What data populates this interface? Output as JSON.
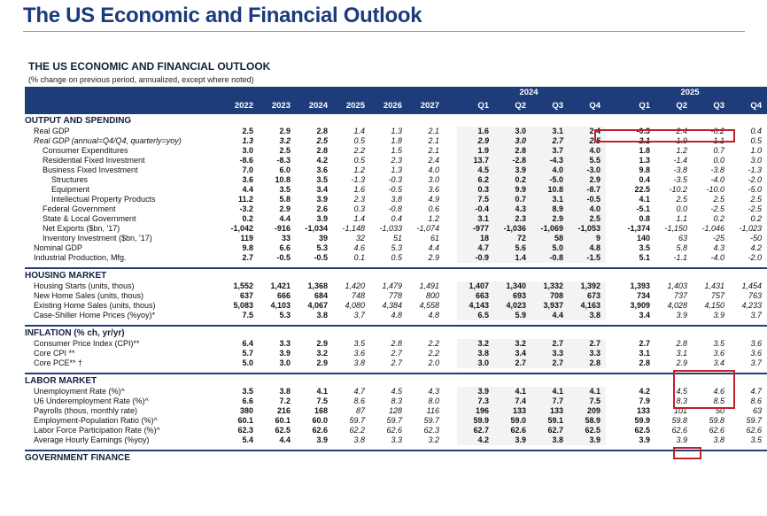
{
  "page": {
    "title": "The US Economic and Financial Outlook",
    "doc_title": "THE US ECONOMIC AND FINANCIAL OUTLOOK",
    "subtitle": "(% change on previous period, annualized, except where noted)"
  },
  "columns": {
    "group_2024": "2024",
    "group_2025": "2025",
    "annual": [
      "2022",
      "2023",
      "2024",
      "2025",
      "2026",
      "2027"
    ],
    "q2024": [
      "Q1",
      "Q2",
      "Q3",
      "Q4"
    ],
    "q2025": [
      "Q1",
      "Q2",
      "Q3",
      "Q4"
    ]
  },
  "sections": [
    {
      "title": "OUTPUT AND SPENDING",
      "rows": [
        {
          "label": "Real GDP",
          "indent": 1,
          "italic": false,
          "annual": [
            "2.5",
            "2.9",
            "2.8",
            "1.4",
            "1.3",
            "2.1"
          ],
          "q2024": [
            "1.6",
            "3.0",
            "3.1",
            "2.4"
          ],
          "q2025": [
            "-0.3",
            "2.4",
            "-0.2",
            "0.4"
          ]
        },
        {
          "label": "Real GDP (annual=Q4/Q4, quarterly=yoy)",
          "indent": 1,
          "italic": true,
          "annual": [
            "1.3",
            "3.2",
            "2.5",
            "0.5",
            "1.8",
            "2.1"
          ],
          "q2024": [
            "2.9",
            "3.0",
            "2.7",
            "2.5"
          ],
          "q2025": [
            "2.1",
            "1.9",
            "1.1",
            "0.5"
          ]
        },
        {
          "label": "Consumer Expenditures",
          "indent": 2,
          "italic": false,
          "annual": [
            "3.0",
            "2.5",
            "2.8",
            "2.2",
            "1.5",
            "2.1"
          ],
          "q2024": [
            "1.9",
            "2.8",
            "3.7",
            "4.0"
          ],
          "q2025": [
            "1.8",
            "1.2",
            "0.7",
            "1.0"
          ]
        },
        {
          "label": "Residential Fixed Investment",
          "indent": 2,
          "italic": false,
          "annual": [
            "-8.6",
            "-8.3",
            "4.2",
            "0.5",
            "2.3",
            "2.4"
          ],
          "q2024": [
            "13.7",
            "-2.8",
            "-4.3",
            "5.5"
          ],
          "q2025": [
            "1.3",
            "-1.4",
            "0.0",
            "3.0"
          ]
        },
        {
          "label": "Business Fixed Investment",
          "indent": 2,
          "italic": false,
          "annual": [
            "7.0",
            "6.0",
            "3.6",
            "1.2",
            "1.3",
            "4.0"
          ],
          "q2024": [
            "4.5",
            "3.9",
            "4.0",
            "-3.0"
          ],
          "q2025": [
            "9.8",
            "-3.8",
            "-3.8",
            "-1.3"
          ]
        },
        {
          "label": "Structures",
          "indent": 3,
          "italic": false,
          "annual": [
            "3.6",
            "10.8",
            "3.5",
            "-1.3",
            "-0.3",
            "3.0"
          ],
          "q2024": [
            "6.2",
            "0.2",
            "-5.0",
            "2.9"
          ],
          "q2025": [
            "0.4",
            "-3.5",
            "-4.0",
            "-2.0"
          ]
        },
        {
          "label": "Equipment",
          "indent": 3,
          "italic": false,
          "annual": [
            "4.4",
            "3.5",
            "3.4",
            "1.6",
            "-0.5",
            "3.6"
          ],
          "q2024": [
            "0.3",
            "9.9",
            "10.8",
            "-8.7"
          ],
          "q2025": [
            "22.5",
            "-10.2",
            "-10.0",
            "-5.0"
          ]
        },
        {
          "label": "Intellectual Property Products",
          "indent": 3,
          "italic": false,
          "annual": [
            "11.2",
            "5.8",
            "3.9",
            "2.3",
            "3.8",
            "4.9"
          ],
          "q2024": [
            "7.5",
            "0.7",
            "3.1",
            "-0.5"
          ],
          "q2025": [
            "4.1",
            "2.5",
            "2.5",
            "2.5"
          ]
        },
        {
          "label": "Federal Government",
          "indent": 2,
          "italic": false,
          "annual": [
            "-3.2",
            "2.9",
            "2.6",
            "0.3",
            "-0.8",
            "0.6"
          ],
          "q2024": [
            "-0.4",
            "4.3",
            "8.9",
            "4.0"
          ],
          "q2025": [
            "-5.1",
            "0.0",
            "-2.5",
            "-2.5"
          ]
        },
        {
          "label": "State & Local Government",
          "indent": 2,
          "italic": false,
          "annual": [
            "0.2",
            "4.4",
            "3.9",
            "1.4",
            "0.4",
            "1.2"
          ],
          "q2024": [
            "3.1",
            "2.3",
            "2.9",
            "2.5"
          ],
          "q2025": [
            "0.8",
            "1.1",
            "0.2",
            "0.2"
          ]
        },
        {
          "label": "Net Exports ($bn, '17)",
          "indent": 2,
          "italic": false,
          "annual": [
            "-1,042",
            "-916",
            "-1,034",
            "-1,148",
            "-1,033",
            "-1,074"
          ],
          "q2024": [
            "-977",
            "-1,036",
            "-1,069",
            "-1,053"
          ],
          "q2025": [
            "-1,374",
            "-1,150",
            "-1,046",
            "-1,023"
          ]
        },
        {
          "label": "Inventory Investment ($bn, '17)",
          "indent": 2,
          "italic": false,
          "annual": [
            "119",
            "33",
            "39",
            "32",
            "51",
            "61"
          ],
          "q2024": [
            "18",
            "72",
            "58",
            "9"
          ],
          "q2025": [
            "140",
            "63",
            "-25",
            "-50"
          ]
        },
        {
          "label": "Nominal GDP",
          "indent": 1,
          "italic": false,
          "annual": [
            "9.8",
            "6.6",
            "5.3",
            "4.6",
            "5.3",
            "4.4"
          ],
          "q2024": [
            "4.7",
            "5.6",
            "5.0",
            "4.8"
          ],
          "q2025": [
            "3.5",
            "5.8",
            "4.3",
            "4.2"
          ]
        },
        {
          "label": "Industrial Production, Mfg.",
          "indent": 1,
          "italic": false,
          "annual": [
            "2.7",
            "-0.5",
            "-0.5",
            "0.1",
            "0.5",
            "2.9"
          ],
          "q2024": [
            "-0.9",
            "1.4",
            "-0.8",
            "-1.5"
          ],
          "q2025": [
            "5.1",
            "-1.1",
            "-4.0",
            "-2.0"
          ]
        }
      ]
    },
    {
      "title": "HOUSING MARKET",
      "rows": [
        {
          "label": "Housing Starts (units, thous)",
          "indent": 1,
          "italic": false,
          "annual": [
            "1,552",
            "1,421",
            "1,368",
            "1,420",
            "1,479",
            "1,491"
          ],
          "q2024": [
            "1,407",
            "1,340",
            "1,332",
            "1,392"
          ],
          "q2025": [
            "1,393",
            "1,403",
            "1,431",
            "1,454"
          ]
        },
        {
          "label": "New Home Sales (units, thous)",
          "indent": 1,
          "italic": false,
          "annual": [
            "637",
            "666",
            "684",
            "748",
            "778",
            "800"
          ],
          "q2024": [
            "663",
            "693",
            "708",
            "673"
          ],
          "q2025": [
            "734",
            "737",
            "757",
            "763"
          ]
        },
        {
          "label": "Existing Home Sales (units, thous)",
          "indent": 1,
          "italic": false,
          "annual": [
            "5,083",
            "4,103",
            "4,067",
            "4,080",
            "4,384",
            "4,558"
          ],
          "q2024": [
            "4,143",
            "4,023",
            "3,937",
            "4,163"
          ],
          "q2025": [
            "3,909",
            "4,028",
            "4,150",
            "4,233"
          ]
        },
        {
          "label": "Case-Shiller Home Prices (%yoy)*",
          "indent": 1,
          "italic": false,
          "annual": [
            "7.5",
            "5.3",
            "3.8",
            "3.7",
            "4.8",
            "4.8"
          ],
          "q2024": [
            "6.5",
            "5.9",
            "4.4",
            "3.8"
          ],
          "q2025": [
            "3.4",
            "3.9",
            "3.9",
            "3.7"
          ]
        }
      ]
    },
    {
      "title": "INFLATION (% ch, yr/yr)",
      "rows": [
        {
          "label": "Consumer Price Index (CPI)**",
          "indent": 1,
          "italic": false,
          "annual": [
            "6.4",
            "3.3",
            "2.9",
            "3.5",
            "2.8",
            "2.2"
          ],
          "q2024": [
            "3.2",
            "3.2",
            "2.7",
            "2.7"
          ],
          "q2025": [
            "2.7",
            "2.8",
            "3.5",
            "3.6"
          ]
        },
        {
          "label": "Core CPI **",
          "indent": 1,
          "italic": false,
          "annual": [
            "5.7",
            "3.9",
            "3.2",
            "3.6",
            "2.7",
            "2.2"
          ],
          "q2024": [
            "3.8",
            "3.4",
            "3.3",
            "3.3"
          ],
          "q2025": [
            "3.1",
            "3.1",
            "3.6",
            "3.6"
          ]
        },
        {
          "label": "Core PCE** †",
          "indent": 1,
          "italic": false,
          "annual": [
            "5.0",
            "3.0",
            "2.9",
            "3.8",
            "2.7",
            "2.0"
          ],
          "q2024": [
            "3.0",
            "2.7",
            "2.7",
            "2.8"
          ],
          "q2025": [
            "2.8",
            "2.9",
            "3.4",
            "3.7"
          ]
        }
      ]
    },
    {
      "title": "LABOR MARKET",
      "rows": [
        {
          "label": "Unemployment Rate (%)^",
          "indent": 1,
          "italic": false,
          "annual": [
            "3.5",
            "3.8",
            "4.1",
            "4.7",
            "4.5",
            "4.3"
          ],
          "q2024": [
            "3.9",
            "4.1",
            "4.1",
            "4.1"
          ],
          "q2025": [
            "4.2",
            "4.5",
            "4.6",
            "4.7"
          ]
        },
        {
          "label": "U6 Underemployment Rate (%)^",
          "indent": 1,
          "italic": false,
          "annual": [
            "6.6",
            "7.2",
            "7.5",
            "8.6",
            "8.3",
            "8.0"
          ],
          "q2024": [
            "7.3",
            "7.4",
            "7.7",
            "7.5"
          ],
          "q2025": [
            "7.9",
            "8.3",
            "8.5",
            "8.6"
          ]
        },
        {
          "label": "Payrolls (thous, monthly rate)",
          "indent": 1,
          "italic": false,
          "annual": [
            "380",
            "216",
            "168",
            "87",
            "128",
            "116"
          ],
          "q2024": [
            "196",
            "133",
            "133",
            "209"
          ],
          "q2025": [
            "133",
            "101",
            "50",
            "63"
          ]
        },
        {
          "label": "Employment-Population Ratio (%)^",
          "indent": 1,
          "italic": false,
          "annual": [
            "60.1",
            "60.1",
            "60.0",
            "59.7",
            "59.7",
            "59.7"
          ],
          "q2024": [
            "59.9",
            "59.0",
            "59.1",
            "58.9"
          ],
          "q2025": [
            "59.9",
            "59.8",
            "59.8",
            "59.7"
          ]
        },
        {
          "label": "Labor Force Participation Rate (%)^",
          "indent": 1,
          "italic": false,
          "annual": [
            "62.3",
            "62.5",
            "62.6",
            "62.2",
            "62.6",
            "62.3"
          ],
          "q2024": [
            "62.7",
            "62.6",
            "62.7",
            "62.5"
          ],
          "q2025": [
            "62.5",
            "62.6",
            "62.6",
            "62.6"
          ]
        },
        {
          "label": "Average Hourly Earnings (%yoy)",
          "indent": 1,
          "italic": false,
          "annual": [
            "5.4",
            "4.4",
            "3.9",
            "3.8",
            "3.3",
            "3.2"
          ],
          "q2024": [
            "4.2",
            "3.9",
            "3.8",
            "3.9"
          ],
          "q2025": [
            "3.9",
            "3.9",
            "3.8",
            "3.5"
          ]
        }
      ]
    },
    {
      "title": "GOVERNMENT FINANCE",
      "rows": []
    }
  ]
}
